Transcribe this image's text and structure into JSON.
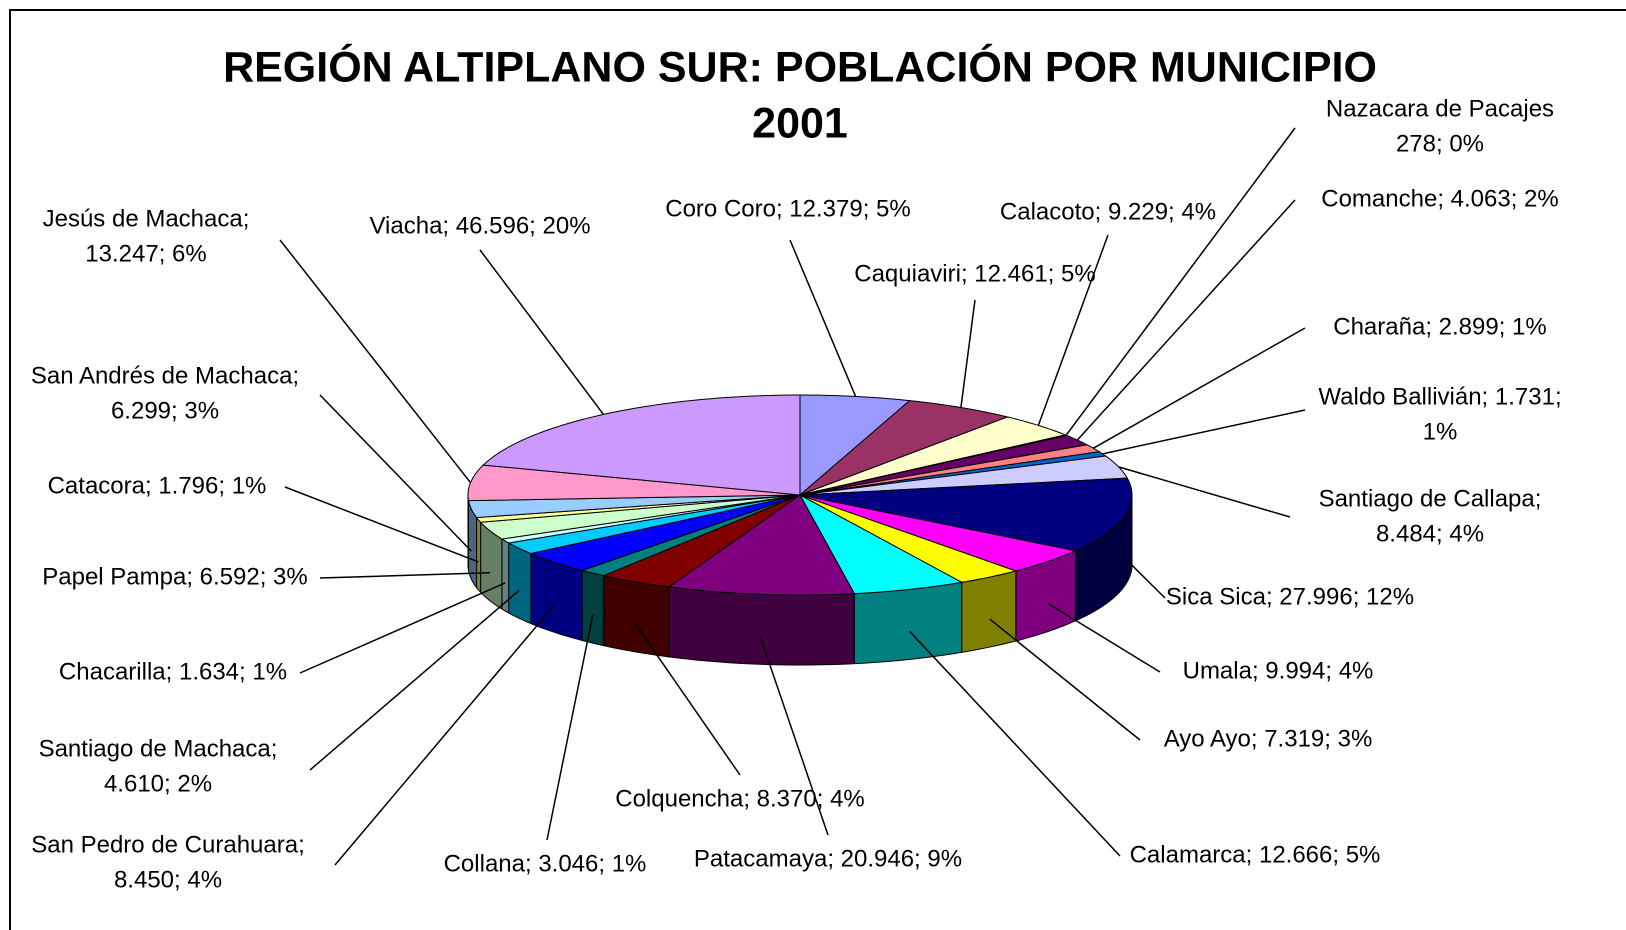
{
  "chart_data": {
    "type": "pie3d",
    "title": [
      "REGIÓN ALTIPLANO SUR: POBLACIÓN POR MUNICIPIO",
      "2001"
    ],
    "values": [
      12379,
      12461,
      9229,
      278,
      4063,
      2899,
      1731,
      8484,
      27996,
      9994,
      7319,
      12666,
      20946,
      8370,
      3046,
      8450,
      4610,
      1634,
      6592,
      1796,
      6299,
      13247,
      46596
    ],
    "value_labels": [
      [
        "Coro Coro; 12.379; 5%"
      ],
      [
        "Caquiaviri; 12.461; 5%"
      ],
      [
        "Calacoto; 9.229; 4%"
      ],
      [
        "Nazacara de Pacajes",
        "278; 0%"
      ],
      [
        "Comanche; 4.063; 2%"
      ],
      [
        "Charaña; 2.899; 1%"
      ],
      [
        "Waldo Ballivián; 1.731;",
        "1%"
      ],
      [
        "Santiago de Callapa;",
        "8.484; 4%"
      ],
      [
        "Sica Sica; 27.996; 12%"
      ],
      [
        "Umala; 9.994; 4%"
      ],
      [
        "Ayo Ayo; 7.319; 3%"
      ],
      [
        "Calamarca; 12.666; 5%"
      ],
      [
        "Patacamaya; 20.946; 9%"
      ],
      [
        "Colquencha; 8.370; 4%"
      ],
      [
        "Collana; 3.046; 1%"
      ],
      [
        "San Pedro de Curahuara;",
        "8.450; 4%"
      ],
      [
        "Santiago de Machaca;",
        "4.610; 2%"
      ],
      [
        "Chacarilla; 1.634; 1%"
      ],
      [
        "Papel Pampa; 6.592; 3%"
      ],
      [
        "Catacora; 1.796; 1%"
      ],
      [
        "San Andrés de Machaca;",
        "6.299; 3%"
      ],
      [
        "Jesús de Machaca;",
        "13.247; 6%"
      ],
      [
        "Viacha; 46.596; 20%"
      ]
    ],
    "colors": [
      "#9999FF",
      "#993366",
      "#FFFFCC",
      "#CCFFFF",
      "#660066",
      "#FF8080",
      "#0066CC",
      "#CCCCFF",
      "#000080",
      "#FF00FF",
      "#FFFF00",
      "#00FFFF",
      "#800080",
      "#800000",
      "#008080",
      "#0000FF",
      "#00CCFF",
      "#CCFFFF",
      "#CCFFCC",
      "#FFFF99",
      "#99CCFF",
      "#FF99CC",
      "#CC99FF"
    ]
  }
}
